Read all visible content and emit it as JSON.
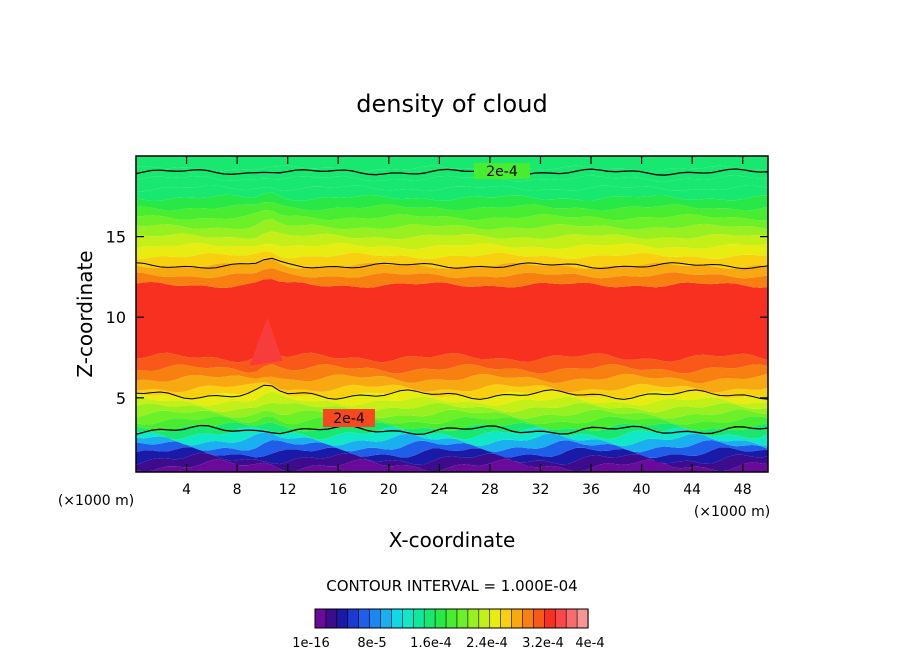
{
  "chart_data": {
    "type": "contour",
    "title": "density of cloud",
    "xlabel": "X-coordinate",
    "ylabel": "Z-coordinate",
    "x_unit_left": "(×1000 m)",
    "x_unit_right": "(×1000 m)",
    "xlim": [
      0,
      50
    ],
    "ylim": [
      0.4,
      20
    ],
    "x_ticks": [
      4,
      8,
      12,
      16,
      20,
      24,
      28,
      32,
      36,
      40,
      44,
      48
    ],
    "y_ticks": [
      5,
      10,
      15
    ],
    "contour_interval_text": "CONTOUR INTERVAL = 1.000E-04",
    "contour_labels": [
      "2e-4",
      "2e-4"
    ],
    "colorbar_labels": [
      "1e-16",
      "8e-5",
      "1.6e-4",
      "2.4e-4",
      "3.2e-4",
      "4e-4"
    ],
    "colorbar_colors": [
      "#6a0a9a",
      "#3c0c8c",
      "#1a1aa8",
      "#1c3ad0",
      "#1e5ee8",
      "#1e86f0",
      "#1ab0f0",
      "#10d8e8",
      "#10e8c8",
      "#10e8a0",
      "#18e870",
      "#28e848",
      "#48ec30",
      "#6cf028",
      "#98f020",
      "#c4f018",
      "#e8ec10",
      "#f8d010",
      "#f8a810",
      "#f88010",
      "#f85818",
      "#f83020",
      "#f84848",
      "#f86c6c",
      "#f89494"
    ],
    "z_levels_km": [
      0.4,
      0.8,
      1.2,
      1.6,
      2.0,
      2.4,
      2.8,
      3.2,
      3.6,
      4.0,
      4.4,
      4.8,
      5.2,
      5.6,
      6.2,
      6.8,
      7.5,
      12.0,
      12.6,
      13.2,
      13.8,
      14.4,
      15.0,
      15.6,
      16.2,
      16.8,
      17.4,
      18.0,
      18.6,
      19.2,
      20.0
    ],
    "band_color_index": [
      0,
      1,
      2,
      4,
      6,
      8,
      10,
      12,
      13,
      14,
      15,
      16,
      17,
      18,
      19,
      20,
      21,
      19,
      18,
      17,
      16,
      15,
      14,
      13,
      12,
      11,
      10,
      10,
      10,
      10
    ],
    "contour_2e4_lower_km": 3.0,
    "contour_mid_low_km": 5.2,
    "contour_mid_high_km": 13.2,
    "contour_2e4_upper_km": 19.0
  }
}
